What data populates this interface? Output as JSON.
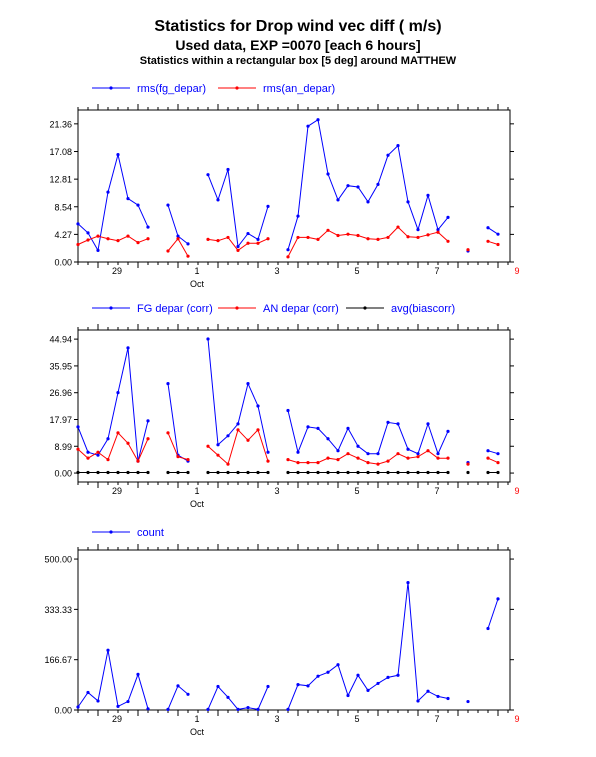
{
  "titles": {
    "line1": "Statistics for  Drop wind vec diff ( m/s)",
    "line2": "Used data, EXP =0070 [each  6 hours]",
    "line3": "Statistics within a rectangular box [5 deg] around MATTHEW"
  },
  "colors": {
    "blue": "#0000ff",
    "red": "#ff0000",
    "black": "#000000"
  },
  "chart_data": [
    {
      "type": "line",
      "x_tick_labels": [
        "29",
        "1",
        "3",
        "5",
        "7",
        "9"
      ],
      "x_tick_label_colors": [
        "#000000",
        "#000000",
        "#000000",
        "#000000",
        "#000000",
        "#ff0000"
      ],
      "x_month_label": "Oct",
      "ylim": [
        0,
        23.5
      ],
      "y_ticks": [
        "0.00",
        "4.27",
        "8.54",
        "12.81",
        "17.08",
        "21.36"
      ],
      "series": [
        {
          "name": "rms(fg_depar)",
          "color": "#0000ff",
          "values": [
            5.9,
            4.5,
            1.8,
            10.8,
            16.6,
            9.8,
            8.8,
            5.4,
            null,
            8.8,
            4.0,
            2.8,
            null,
            13.5,
            9.6,
            14.3,
            2.4,
            4.4,
            3.5,
            8.6,
            null,
            1.9,
            7.1,
            21.0,
            22.0,
            13.6,
            9.6,
            11.8,
            11.6,
            9.3,
            12.0,
            16.5,
            18.0,
            9.3,
            5.0,
            10.3,
            5.0,
            6.9,
            null,
            1.7,
            null,
            5.3,
            4.3
          ]
        },
        {
          "name": "rms(an_depar)",
          "color": "#ff0000",
          "values": [
            2.7,
            3.4,
            4.0,
            3.6,
            3.3,
            4.0,
            3.0,
            3.6,
            null,
            1.7,
            3.6,
            0.9,
            null,
            3.5,
            3.3,
            3.8,
            1.8,
            2.9,
            2.9,
            3.6,
            null,
            0.8,
            3.8,
            3.8,
            3.5,
            4.9,
            4.1,
            4.3,
            4.1,
            3.6,
            3.5,
            3.8,
            5.4,
            3.9,
            3.8,
            4.2,
            4.6,
            3.2,
            null,
            1.9,
            null,
            3.2,
            2.7
          ]
        }
      ]
    },
    {
      "type": "line",
      "x_tick_labels": [
        "29",
        "1",
        "3",
        "5",
        "7",
        "9"
      ],
      "x_tick_label_colors": [
        "#000000",
        "#000000",
        "#000000",
        "#000000",
        "#000000",
        "#ff0000"
      ],
      "x_month_label": "Oct",
      "ylim": [
        -3.0,
        48.0
      ],
      "y_ticks": [
        "0.00",
        "8.99",
        "17.97",
        "26.96",
        "35.95",
        "44.94"
      ],
      "series": [
        {
          "name": "FG depar (corr)",
          "color": "#0000ff",
          "values": [
            15.5,
            7.0,
            6.0,
            11.5,
            27.0,
            42.0,
            4.0,
            17.5,
            null,
            30.0,
            6.0,
            4.0,
            null,
            45.0,
            9.5,
            12.5,
            16.5,
            30.0,
            22.5,
            7.0,
            null,
            21.0,
            7.0,
            15.5,
            15.0,
            11.5,
            7.5,
            15.0,
            9.0,
            6.5,
            6.5,
            17.0,
            16.5,
            8.0,
            6.5,
            16.5,
            6.5,
            14.0,
            null,
            3.5,
            null,
            7.5,
            6.5
          ]
        },
        {
          "name": "AN depar (corr)",
          "color": "#ff0000",
          "values": [
            8.0,
            5.0,
            7.0,
            4.5,
            13.5,
            10.0,
            4.0,
            11.5,
            null,
            13.5,
            5.5,
            4.5,
            null,
            9.0,
            6.0,
            3.0,
            14.5,
            11.0,
            14.5,
            4.0,
            null,
            4.5,
            3.5,
            3.5,
            3.5,
            5.0,
            4.5,
            6.5,
            5.0,
            3.5,
            3.0,
            4.0,
            6.5,
            5.0,
            5.5,
            7.5,
            5.0,
            5.0,
            null,
            3.0,
            null,
            5.0,
            3.5
          ]
        },
        {
          "name": "avg(biascorr)",
          "color": "#000000",
          "values": [
            0.2,
            0.2,
            0.2,
            0.2,
            0.2,
            0.2,
            0.2,
            0.2,
            null,
            0.2,
            0.2,
            0.2,
            null,
            0.2,
            0.2,
            0.2,
            0.2,
            0.2,
            0.2,
            0.2,
            null,
            0.2,
            0.2,
            0.2,
            0.2,
            0.2,
            0.2,
            0.2,
            0.2,
            0.2,
            0.2,
            0.2,
            0.2,
            0.2,
            0.2,
            0.2,
            0.2,
            0.2,
            null,
            0.2,
            null,
            0.2,
            0.2
          ]
        }
      ]
    },
    {
      "type": "line",
      "x_tick_labels": [
        "29",
        "1",
        "3",
        "5",
        "7",
        "9"
      ],
      "x_tick_label_colors": [
        "#000000",
        "#000000",
        "#000000",
        "#000000",
        "#000000",
        "#ff0000"
      ],
      "x_month_label": "Oct",
      "ylim": [
        0,
        530
      ],
      "y_ticks": [
        "0.00",
        "166.67",
        "333.33",
        "500.00"
      ],
      "series": [
        {
          "name": "count",
          "color": "#0000ff",
          "values": [
            10,
            58,
            30,
            198,
            12,
            28,
            118,
            4,
            null,
            2,
            80,
            52,
            null,
            2,
            78,
            42,
            2,
            8,
            2,
            78,
            null,
            2,
            84,
            80,
            112,
            125,
            150,
            48,
            115,
            65,
            88,
            108,
            115,
            422,
            30,
            62,
            45,
            38,
            null,
            28,
            null,
            270,
            368
          ]
        }
      ]
    }
  ]
}
